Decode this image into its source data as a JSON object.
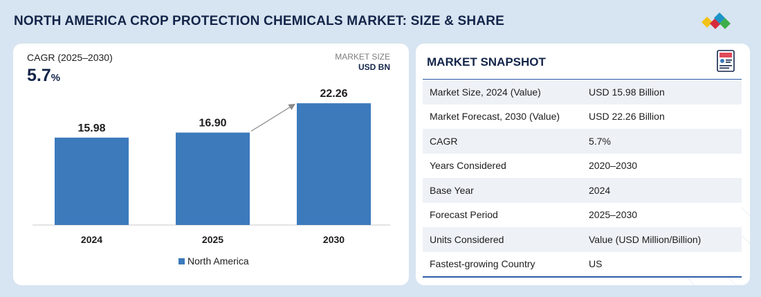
{
  "header": {
    "title": "NORTH AMERICA CROP PROTECTION CHEMICALS MARKET: SIZE & SHARE",
    "logo_icon": "diamond-cluster-logo-icon",
    "logo_colors": [
      "#f2c318",
      "#d62b3a",
      "#1d93c8",
      "#3dae49"
    ]
  },
  "left_panel": {
    "cagr_label": "CAGR (2025–2030)",
    "cagr_number": "5.7",
    "cagr_unit": "%",
    "market_size_label": "MARKET SIZE",
    "market_size_unit": "USD BN"
  },
  "chart_data": {
    "type": "bar",
    "categories": [
      "2024",
      "2025",
      "2030"
    ],
    "series": [
      {
        "name": "North America",
        "values": [
          15.98,
          16.9,
          22.26
        ],
        "color": "#3c7abc"
      }
    ],
    "data_labels": [
      "15.98",
      "16.90",
      "22.26"
    ],
    "legend": {
      "placement": "bottom-center",
      "entries": [
        "North America"
      ]
    },
    "ylim": [
      0,
      25
    ],
    "grid": false,
    "annotation": "growth arrow from 2025 bar to 2030 bar"
  },
  "snapshot": {
    "title": "MARKET SNAPSHOT",
    "icon": "report-document-icon",
    "rows": [
      {
        "key": "Market Size, 2024 (Value)",
        "value": "USD 15.98 Billion"
      },
      {
        "key": "Market Forecast, 2030 (Value)",
        "value": "USD 22.26 Billion"
      },
      {
        "key": "CAGR",
        "value": "5.7%"
      },
      {
        "key": "Years Considered",
        "value": "2020–2030"
      },
      {
        "key": "Base Year",
        "value": "2024"
      },
      {
        "key": "Forecast Period",
        "value": "2025–2030"
      },
      {
        "key": "Units Considered",
        "value": "Value (USD Million/Billion)"
      },
      {
        "key": "Fastest-growing Country",
        "value": "US"
      }
    ]
  },
  "colors": {
    "background": "#d7e4f1",
    "title": "#14254a",
    "bar": "#3c7abc",
    "table_stripe": "#eef2f7",
    "table_rule": "#2e5da8"
  }
}
